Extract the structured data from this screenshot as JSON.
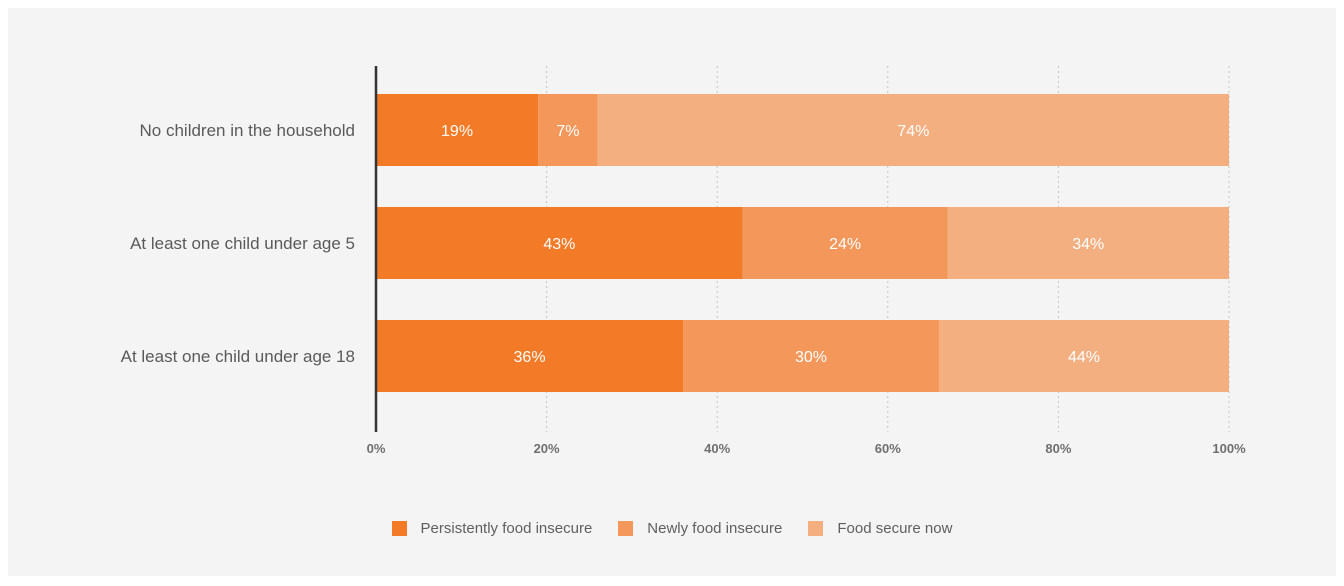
{
  "chart_data": {
    "type": "bar",
    "orientation": "horizontal",
    "stacked": true,
    "title": "",
    "xlabel": "",
    "ylabel": "",
    "xlim": [
      0,
      100
    ],
    "x_ticks": [
      0,
      20,
      40,
      60,
      80,
      100
    ],
    "x_tick_labels": [
      "0%",
      "20%",
      "40%",
      "60%",
      "80%",
      "100%"
    ],
    "categories": [
      "No children in the household",
      "At least one child under age 5",
      "At least one child under age 18"
    ],
    "series": [
      {
        "name": "Persistently food insecure",
        "values": [
          19,
          43,
          36
        ],
        "labels": [
          "19%",
          "43%",
          "36%"
        ],
        "color": "#f37a26"
      },
      {
        "name": "Newly food insecure",
        "values": [
          7,
          24,
          30
        ],
        "labels": [
          "7%",
          "24%",
          "30%"
        ],
        "color": "#f4975a"
      },
      {
        "name": "Food secure now",
        "values": [
          74,
          34,
          44
        ],
        "labels": [
          "74%",
          "34%",
          "44%"
        ],
        "color": "#f4af80"
      }
    ],
    "grid": "vertical-dotted",
    "legend_position": "bottom-center"
  }
}
